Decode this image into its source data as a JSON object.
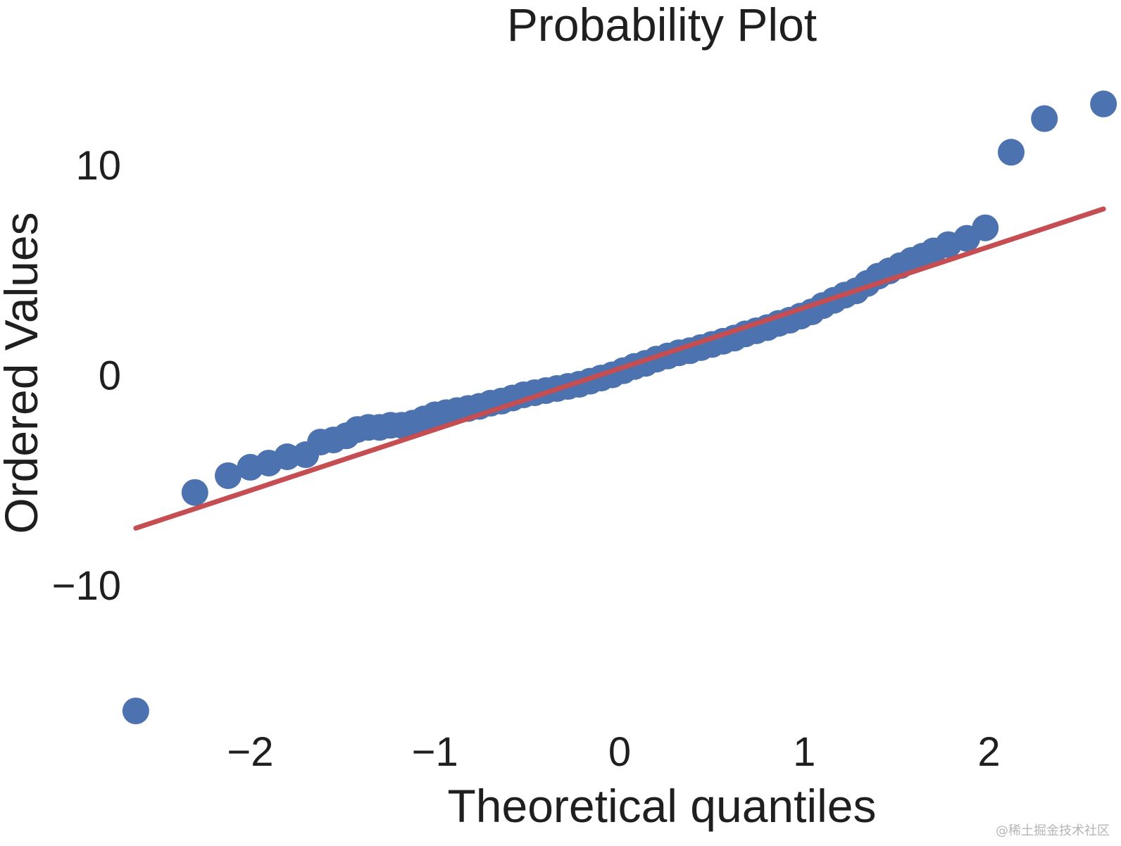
{
  "chart_data": {
    "type": "scatter",
    "title": "Probability Plot",
    "xlabel": "Theoretical quantiles",
    "ylabel": "Ordered Values",
    "xlim": [
      -2.65,
      2.65
    ],
    "ylim": [
      -16.5,
      15
    ],
    "grid": false,
    "x_ticks": [
      -2,
      -1,
      0,
      1,
      2
    ],
    "x_tick_labels": [
      "−2",
      "−1",
      "0",
      "1",
      "2"
    ],
    "y_ticks": [
      -10,
      0,
      10
    ],
    "y_tick_labels": [
      "−10",
      "0",
      "10"
    ],
    "series": [
      {
        "name": "Ordered Values",
        "kind": "points",
        "color": "#4c72b0",
        "x": [
          -2.62,
          -2.3,
          -2.12,
          -2.0,
          -1.9,
          -1.8,
          -1.7,
          -1.62,
          -1.55,
          -1.48,
          -1.42,
          -1.36,
          -1.3,
          -1.24,
          -1.18,
          -1.12,
          -1.06,
          -1.0,
          -0.94,
          -0.88,
          -0.82,
          -0.76,
          -0.7,
          -0.64,
          -0.58,
          -0.52,
          -0.46,
          -0.4,
          -0.34,
          -0.28,
          -0.22,
          -0.16,
          -0.1,
          -0.04,
          0.02,
          0.08,
          0.14,
          0.2,
          0.26,
          0.32,
          0.38,
          0.44,
          0.5,
          0.56,
          0.62,
          0.68,
          0.74,
          0.8,
          0.86,
          0.92,
          0.98,
          1.04,
          1.1,
          1.16,
          1.22,
          1.28,
          1.34,
          1.4,
          1.46,
          1.52,
          1.58,
          1.64,
          1.7,
          1.78,
          1.88,
          1.98,
          2.12,
          2.3,
          2.62
        ],
        "y": [
          -16.0,
          -5.6,
          -4.8,
          -4.4,
          -4.2,
          -3.9,
          -3.8,
          -3.2,
          -3.1,
          -2.9,
          -2.6,
          -2.5,
          -2.5,
          -2.4,
          -2.4,
          -2.3,
          -2.1,
          -1.9,
          -1.8,
          -1.7,
          -1.6,
          -1.5,
          -1.35,
          -1.25,
          -1.1,
          -0.95,
          -0.85,
          -0.75,
          -0.65,
          -0.55,
          -0.45,
          -0.3,
          -0.15,
          0.0,
          0.2,
          0.4,
          0.55,
          0.75,
          0.9,
          1.05,
          1.15,
          1.3,
          1.45,
          1.6,
          1.75,
          1.95,
          2.1,
          2.25,
          2.45,
          2.6,
          2.8,
          3.0,
          3.3,
          3.55,
          3.8,
          4.0,
          4.35,
          4.7,
          4.95,
          5.2,
          5.45,
          5.65,
          5.9,
          6.2,
          6.5,
          7.0,
          10.6,
          12.2,
          12.9
        ]
      },
      {
        "name": "Fit line",
        "kind": "line",
        "color": "#c44e52",
        "x": [
          -2.62,
          2.62
        ],
        "y": [
          -7.3,
          7.9
        ]
      }
    ]
  },
  "footer": {
    "watermark": "@稀土掘金技术社区"
  }
}
